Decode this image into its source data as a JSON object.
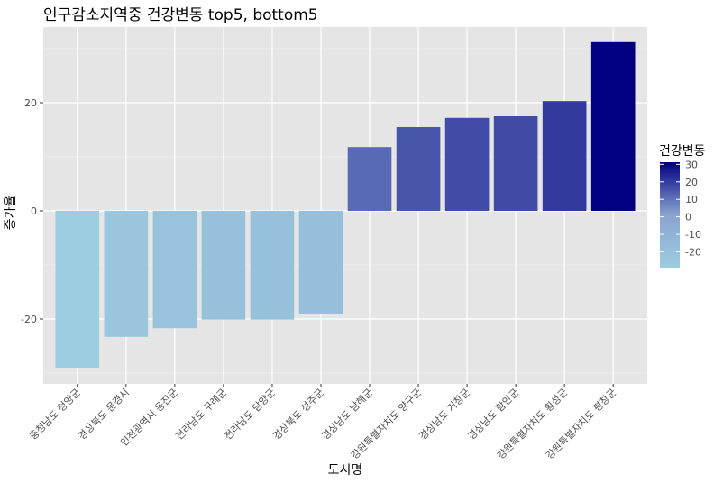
{
  "chart_data": {
    "type": "bar",
    "title": "인구감소지역중 건강변동 top5, bottom5",
    "xlabel": "도시명",
    "ylabel": "증가율",
    "categories": [
      "충청남도 청양군",
      "경상북도 문경시",
      "인천광역시 옹진군",
      "전라남도 구례군",
      "전라남도 담양군",
      "경상북도 성주군",
      "경상남도 남해군",
      "강원특별자치도 양구군",
      "경상남도 거창군",
      "경상남도 함안군",
      "강원특별자치도 횡성군",
      "강원특별자치도 평창군"
    ],
    "values": [
      -29,
      -23.3,
      -21.7,
      -20.1,
      -20.1,
      -19,
      11.8,
      15.5,
      17.2,
      17.5,
      20.3,
      31.2
    ],
    "ylim": [
      -32,
      34
    ],
    "yticks": [
      -20,
      0,
      20
    ],
    "ytick_labels": [
      "-20",
      "0",
      "20"
    ],
    "grid": true,
    "legend": {
      "title": "건강변동",
      "position": "right",
      "ticks": [
        30,
        20,
        10,
        0,
        -10,
        -20
      ],
      "tick_labels": [
        "30",
        "20",
        "10",
        "0",
        "-10",
        "-20"
      ],
      "range": [
        -29,
        31.2
      ]
    },
    "colors": {
      "low": "#9ccde0",
      "mid": "#8aa4d0",
      "high": "#000080",
      "panel": "#e5e5e5",
      "grid_major": "#ffffff",
      "grid_minor": "#f2f2f2"
    }
  }
}
